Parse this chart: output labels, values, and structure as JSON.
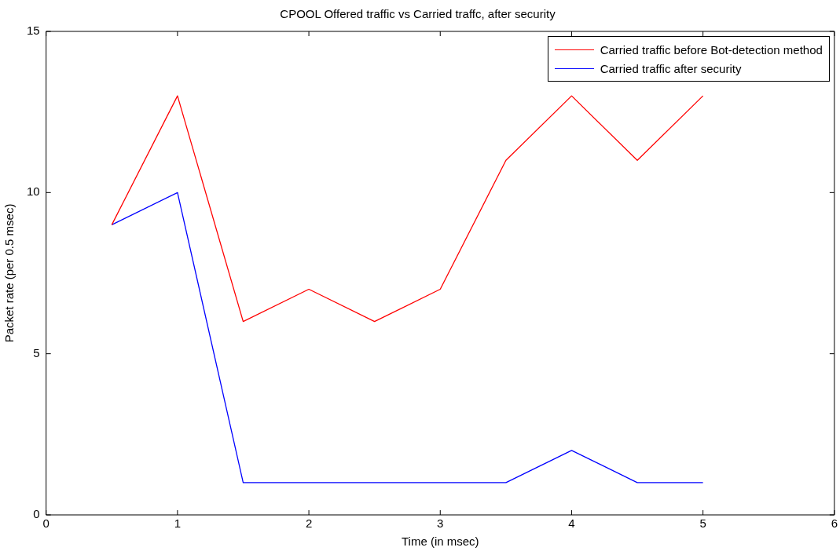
{
  "chart_data": {
    "type": "line",
    "title": "CPOOL Offered traffic vs Carried traffc, after security",
    "xlabel": "Time (in msec)",
    "ylabel": "Packet rate (per 0.5 msec)",
    "x": [
      0.5,
      1,
      1.5,
      2,
      2.5,
      3,
      3.5,
      4,
      4.5,
      5
    ],
    "series": [
      {
        "name": "Carried traffic before Bot-detection method",
        "color": "#ff0000",
        "values": [
          9,
          13,
          6,
          7,
          6,
          7,
          11,
          13,
          11,
          13
        ]
      },
      {
        "name": "Carried traffic after security",
        "color": "#0000ff",
        "values": [
          9,
          10,
          1,
          1,
          1,
          1,
          1,
          2,
          1,
          1
        ]
      }
    ],
    "xlim": [
      0,
      6
    ],
    "xticks": [
      0,
      1,
      2,
      3,
      4,
      5,
      6
    ],
    "ylim": [
      0,
      15
    ],
    "yticks": [
      0,
      5,
      10,
      15
    ],
    "grid": false,
    "legend": "top right",
    "marker": "none",
    "line_style": "solid"
  }
}
